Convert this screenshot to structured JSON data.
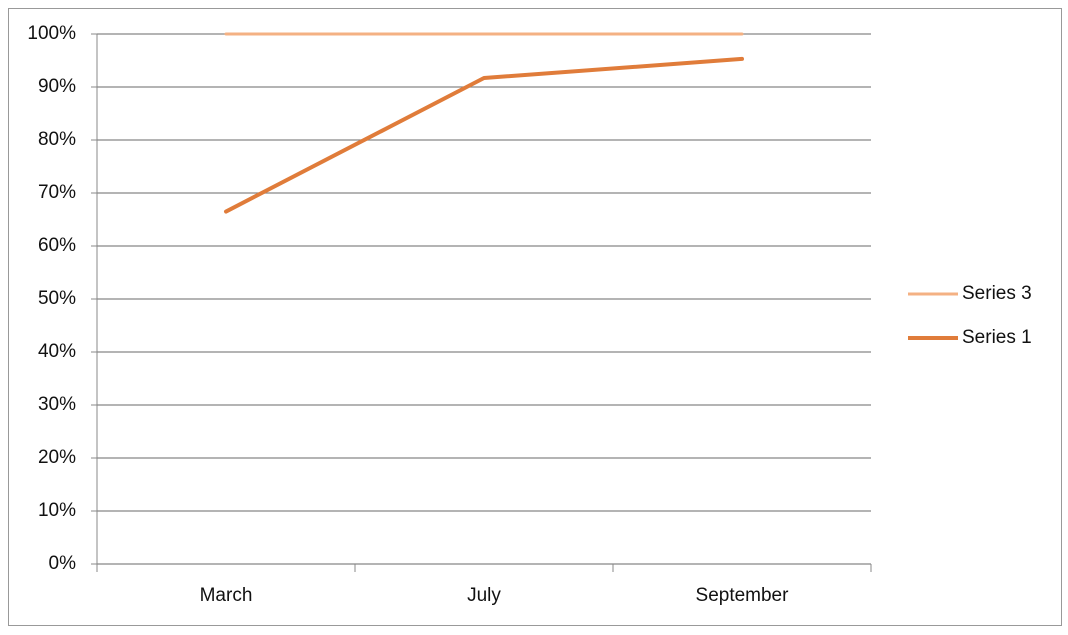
{
  "chart_data": {
    "type": "line",
    "categories": [
      "March",
      "July",
      "September"
    ],
    "series": [
      {
        "name": "Series 3",
        "color": "#f4b183",
        "values": [
          100,
          100,
          100
        ]
      },
      {
        "name": "Series 1",
        "color": "#e07c3a",
        "values": [
          66.5,
          91.7,
          95.3
        ]
      }
    ],
    "ylim": [
      0,
      100
    ],
    "yticks": [
      {
        "value": 0,
        "label": "0%"
      },
      {
        "value": 10,
        "label": "10%"
      },
      {
        "value": 20,
        "label": "20%"
      },
      {
        "value": 30,
        "label": "30%"
      },
      {
        "value": 40,
        "label": "40%"
      },
      {
        "value": 50,
        "label": "50%"
      },
      {
        "value": 60,
        "label": "60%"
      },
      {
        "value": 70,
        "label": "70%"
      },
      {
        "value": 80,
        "label": "80%"
      },
      {
        "value": 90,
        "label": "90%"
      },
      {
        "value": 100,
        "label": "100%"
      }
    ],
    "grid": true,
    "legend": "right"
  }
}
